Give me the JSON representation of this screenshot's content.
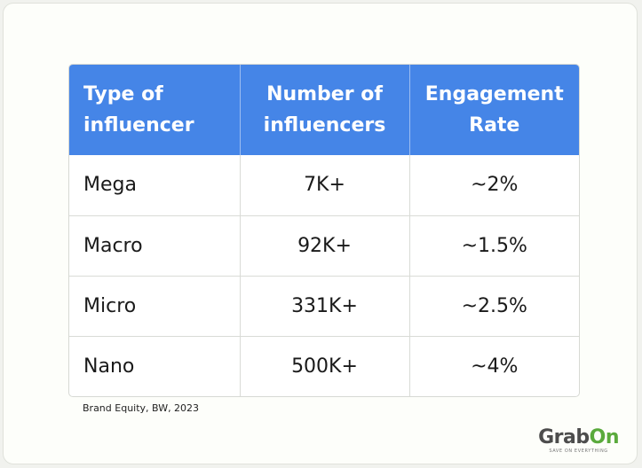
{
  "chart_data": {
    "type": "table",
    "columns": [
      "Type of influencer",
      "Number of influencers",
      "Engagement Rate"
    ],
    "rows": [
      [
        "Mega",
        "7K+",
        "~2%"
      ],
      [
        "Macro",
        "92K+",
        "~1.5%"
      ],
      [
        "Micro",
        "331K+",
        "~2.5%"
      ],
      [
        "Nano",
        "500K+",
        "~4%"
      ]
    ],
    "source": "Brand Equity, BW, 2023"
  },
  "header_colors": {
    "background": "#4585e7",
    "text": "#ffffff"
  },
  "logo": {
    "text_main": "Grab",
    "text_accent": "On",
    "tagline": "SAVE ON EVERYTHING",
    "accent_color": "#5aaa3c"
  }
}
